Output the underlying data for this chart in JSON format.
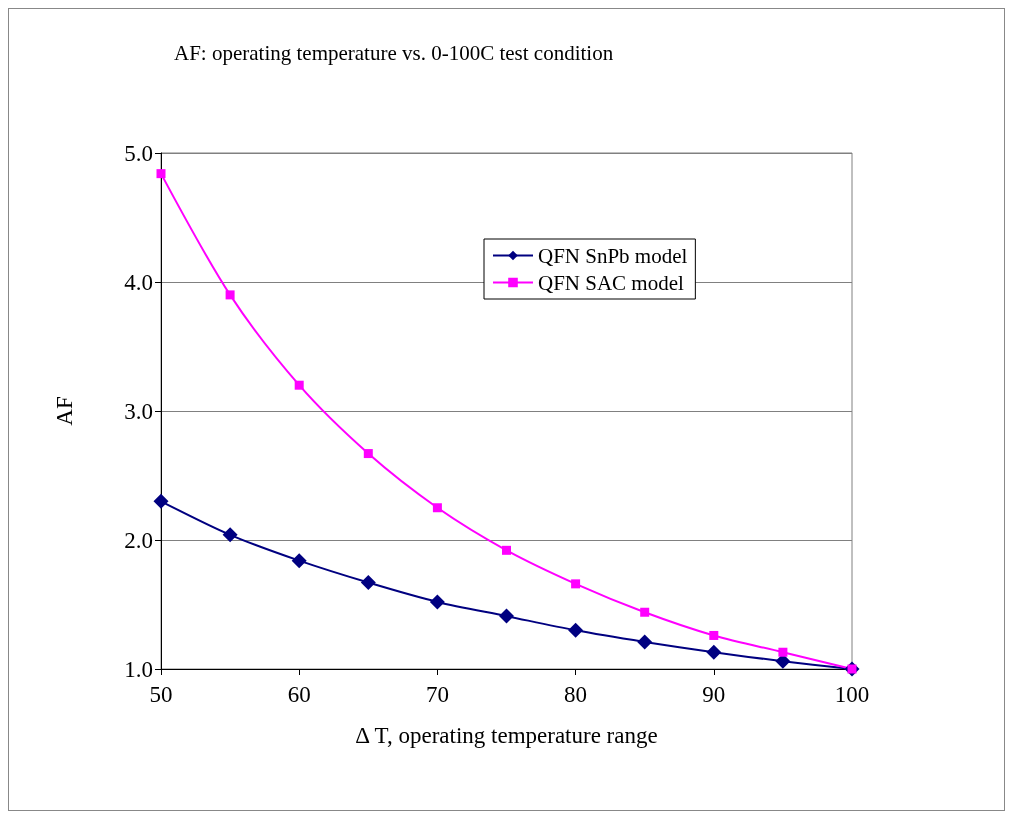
{
  "chart_data": {
    "type": "line",
    "title": "AF: operating temperature vs. 0-100C test condition",
    "xlabel": "Δ T, operating temperature range",
    "ylabel": "AF",
    "x": [
      50,
      55,
      60,
      65,
      70,
      75,
      80,
      85,
      90,
      95,
      100
    ],
    "series": [
      {
        "name": "QFN SnPb model",
        "color": "#000080",
        "marker": "diamond",
        "values": [
          2.3,
          2.04,
          1.84,
          1.67,
          1.52,
          1.41,
          1.3,
          1.21,
          1.13,
          1.06,
          1.0
        ]
      },
      {
        "name": "QFN SAC model",
        "color": "#ff00ff",
        "marker": "square",
        "values": [
          4.84,
          3.9,
          3.2,
          2.67,
          2.25,
          1.92,
          1.66,
          1.44,
          1.26,
          1.13,
          1.0
        ]
      }
    ],
    "xlim": [
      50,
      100
    ],
    "xticks": [
      50,
      60,
      70,
      80,
      90,
      100
    ],
    "ylim": [
      1,
      5
    ],
    "yticks": [
      {
        "value": 1,
        "label": "1.0"
      },
      {
        "value": 2,
        "label": "2.0"
      },
      {
        "value": 3,
        "label": "3.0"
      },
      {
        "value": 4,
        "label": "4.0"
      },
      {
        "value": 5,
        "label": "5.0"
      }
    ],
    "grid": "y",
    "legend": "top right",
    "line_style": "solid"
  }
}
